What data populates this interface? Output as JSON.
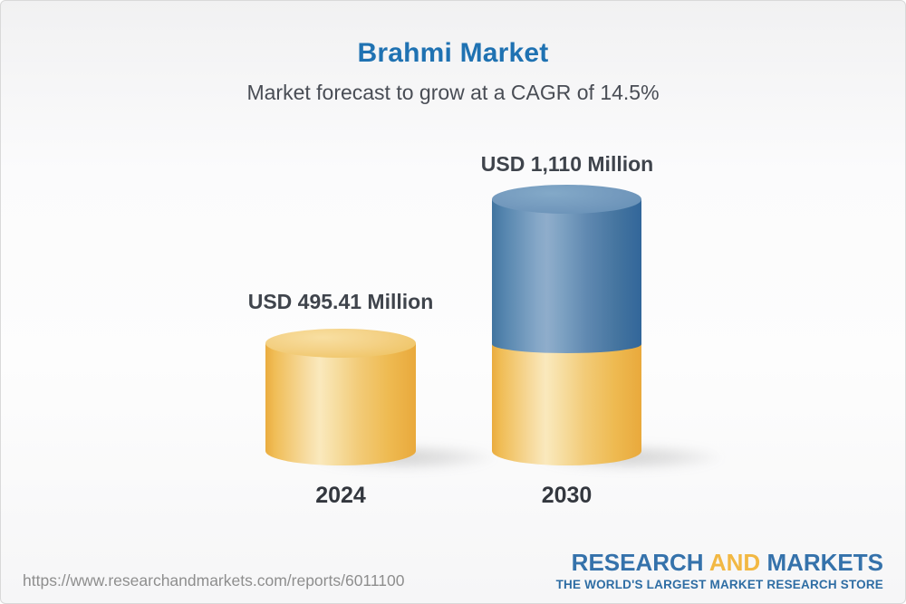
{
  "header": {
    "title": "Brahmi Market",
    "subtitle": "Market forecast to grow at a CAGR of 14.5%"
  },
  "chart_data": {
    "type": "bar",
    "bar_style": "3d-cylinder-stacked",
    "categories": [
      "2024",
      "2030"
    ],
    "series": [
      {
        "name": "Market size",
        "values": [
          495.41,
          1110
        ]
      }
    ],
    "value_labels": [
      "USD 495.41 Million",
      "USD 1,110 Million"
    ],
    "title": "Brahmi Market",
    "subtitle": "Market forecast to grow at a CAGR of 14.5%",
    "unit": "USD Million",
    "cagr_percent": 14.5,
    "xlabel": "",
    "ylabel": "",
    "grid": false,
    "legend": "none",
    "colors": {
      "base_segment": "#F2C96B",
      "growth_segment": "#5E8AB4",
      "title_blue": "#1F72B2",
      "label_dark": "#3F444C"
    }
  },
  "bars": [
    {
      "year": "2024",
      "value_label": "USD 495.41 Million"
    },
    {
      "year": "2030",
      "value_label": "USD 1,110 Million"
    }
  ],
  "footer": {
    "url": "https://www.researchandmarkets.com/reports/6011100",
    "logo": {
      "word1": "RESEARCH",
      "word2": "AND",
      "word3": "MARKETS",
      "tagline": "THE WORLD'S LARGEST MARKET RESEARCH STORE",
      "blue": "#3572AB",
      "gold": "#F2B843"
    }
  }
}
